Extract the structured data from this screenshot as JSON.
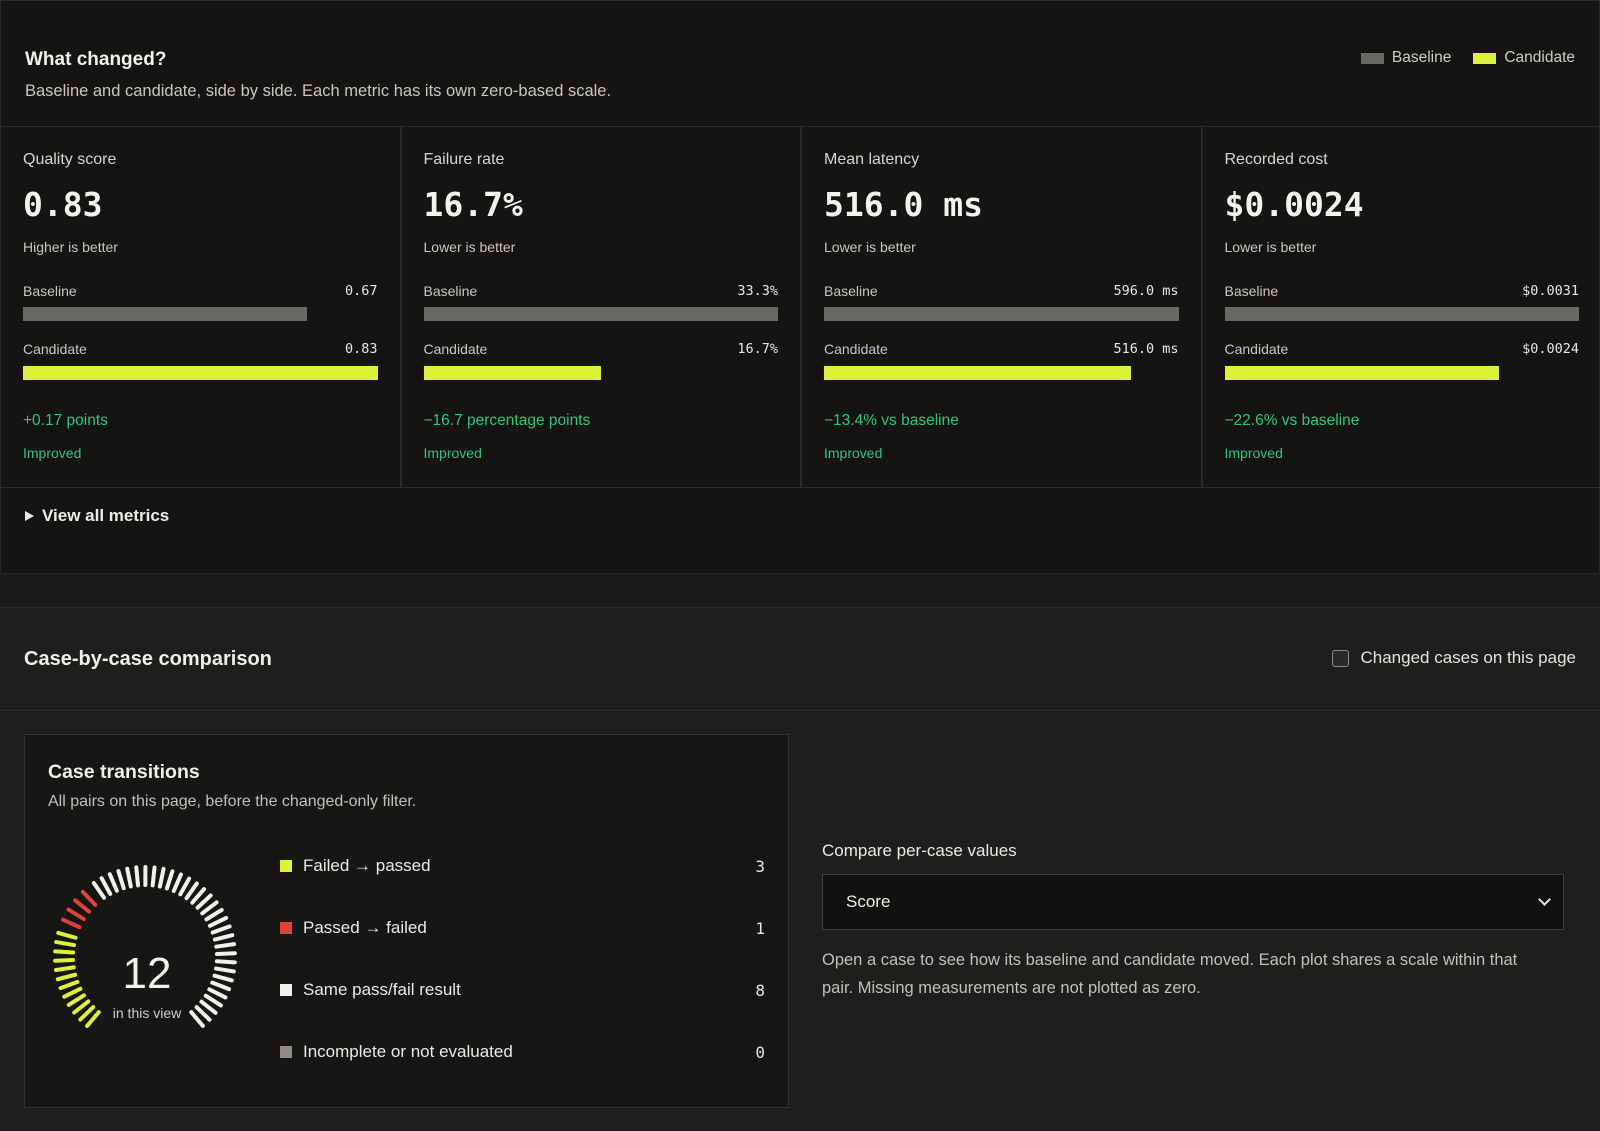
{
  "summary": {
    "title": "What changed?",
    "subtitle": "Baseline and candidate, side by side. Each metric has its own zero-based scale.",
    "legend": [
      {
        "label": "Baseline",
        "color": "#6a6865"
      },
      {
        "label": "Candidate",
        "color": "#d9f23a"
      }
    ]
  },
  "metrics": [
    {
      "title": "Quality score",
      "value": "0.83",
      "direction": "Higher is better",
      "baseline_label": "Baseline",
      "baseline_value": "0.67",
      "baseline_fraction": 0.8,
      "candidate_label": "Candidate",
      "candidate_value": "0.83",
      "candidate_fraction": 1.0,
      "delta": "+0.17 points",
      "status": "Improved"
    },
    {
      "title": "Failure rate",
      "value": "16.7%",
      "direction": "Lower is better",
      "baseline_label": "Baseline",
      "baseline_value": "33.3%",
      "baseline_fraction": 1.0,
      "candidate_label": "Candidate",
      "candidate_value": "16.7%",
      "candidate_fraction": 0.5,
      "delta": "−16.7 percentage points",
      "status": "Improved"
    },
    {
      "title": "Mean latency",
      "value": "516.0 ms",
      "direction": "Lower is better",
      "baseline_label": "Baseline",
      "baseline_value": "596.0 ms",
      "baseline_fraction": 1.0,
      "candidate_label": "Candidate",
      "candidate_value": "516.0 ms",
      "candidate_fraction": 0.866,
      "delta": "−13.4% vs baseline",
      "status": "Improved"
    },
    {
      "title": "Recorded cost",
      "value": "$0.0024",
      "direction": "Lower is better",
      "baseline_label": "Baseline",
      "baseline_value": "$0.0031",
      "baseline_fraction": 1.0,
      "candidate_label": "Candidate",
      "candidate_value": "$0.0024",
      "candidate_fraction": 0.774,
      "delta": "−22.6% vs baseline",
      "status": "Improved"
    }
  ],
  "view_all": {
    "label": "View all metrics",
    "icon": "triangle-right-icon"
  },
  "case_comparison": {
    "title": "Case-by-case comparison",
    "changed_only_label": "Changed cases on this page",
    "changed_only_checked": false
  },
  "transitions": {
    "title": "Case transitions",
    "subtitle": "All pairs on this page, before the changed-only filter.",
    "total": "12",
    "total_caption": "in this view",
    "items": [
      {
        "label": "Failed → passed",
        "count": "3",
        "color": "#d9f23a"
      },
      {
        "label": "Passed → failed",
        "count": "1",
        "color": "#e0413a"
      },
      {
        "label": "Same pass/fail result",
        "count": "8",
        "color": "#f2f0ec"
      },
      {
        "label": "Incomplete or not evaluated",
        "count": "0",
        "color": "#8e8b87"
      }
    ]
  },
  "compare": {
    "label": "Compare per-case values",
    "selected": "Score",
    "help": "Open a case to see how its baseline and candidate moved. Each plot shares a scale within that pair. Missing measurements are not plotted as zero."
  }
}
